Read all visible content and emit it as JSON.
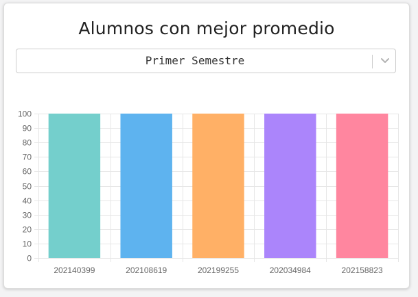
{
  "card": {
    "title": "Alumnos con mejor promedio"
  },
  "semester_select": {
    "selected": "Primer Semestre",
    "arrow_icon": "chevron-down-icon"
  },
  "chart_data": {
    "type": "bar",
    "title": "",
    "xlabel": "",
    "ylabel": "",
    "categories": [
      "202140399",
      "202108619",
      "202199255",
      "202034984",
      "202158823"
    ],
    "values": [
      100,
      100,
      100,
      100,
      100
    ],
    "colors": [
      "#74cfcc",
      "#5eb3ef",
      "#ffb066",
      "#ab85fb",
      "#ff869f"
    ],
    "ylim": [
      0,
      100
    ],
    "yticks": [
      "0",
      "10",
      "20",
      "30",
      "40",
      "50",
      "60",
      "70",
      "80",
      "90",
      "100"
    ],
    "grid": true,
    "legend": "none"
  }
}
